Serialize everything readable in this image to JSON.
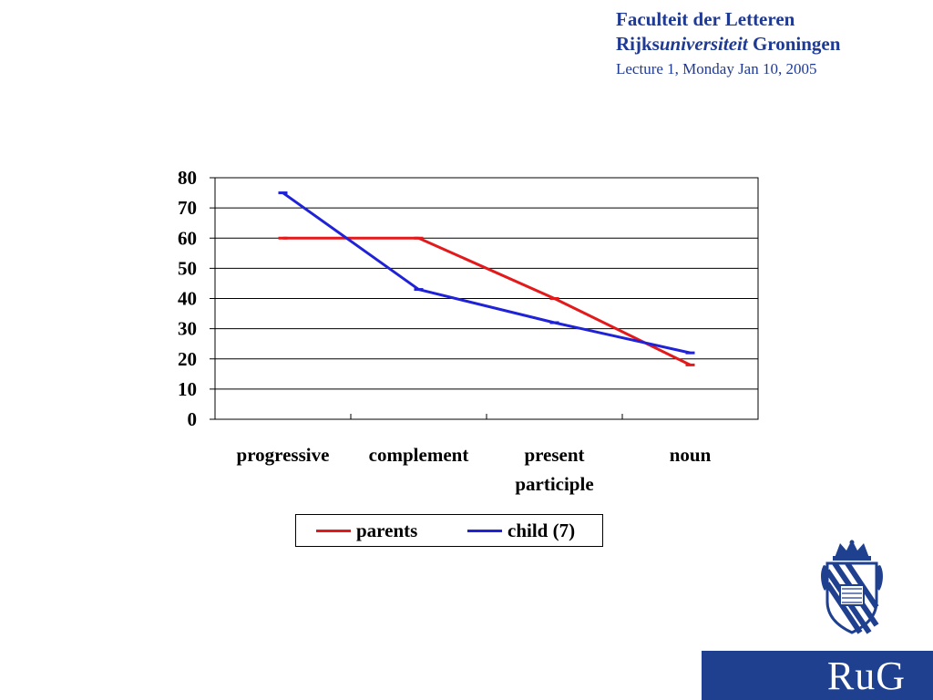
{
  "header": {
    "faculty": "Faculteit der Letteren",
    "university_prefix": "Rijks",
    "university_italic": "universiteit",
    "university_suffix": " Groningen",
    "lecture": "Lecture 1, Monday Jan 10, 2005"
  },
  "chart_data": {
    "type": "line",
    "categories": [
      "progressive",
      "complement",
      "present participle",
      "noun"
    ],
    "category_lines": [
      [
        "progressive"
      ],
      [
        "complement"
      ],
      [
        "present",
        "participle"
      ],
      [
        "noun"
      ]
    ],
    "series": [
      {
        "name": "parents",
        "color": "#e31a1c",
        "values": [
          60,
          60,
          40,
          18
        ]
      },
      {
        "name": "child (7)",
        "color": "#1f22d6",
        "values": [
          75,
          43,
          32,
          22
        ]
      }
    ],
    "yticks": [
      0,
      10,
      20,
      30,
      40,
      50,
      60,
      70,
      80
    ],
    "ylim": [
      0,
      80
    ],
    "grid": true,
    "legend_position": "bottom"
  },
  "logo": {
    "text": "RuG",
    "crest_icon": "university-crest-icon",
    "bg_color": "#1f3f8f"
  }
}
